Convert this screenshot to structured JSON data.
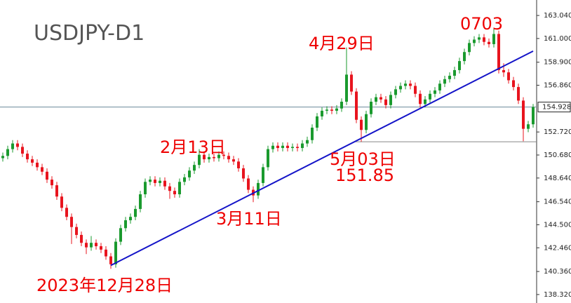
{
  "chart_data": {
    "type": "candlestick",
    "title": "USDJPY-D1",
    "ylim": [
      137.57,
      164.41
    ],
    "yticks": [
      {
        "value": 163.04,
        "label": "163.040"
      },
      {
        "value": 161,
        "label": "161.000"
      },
      {
        "value": 158.9,
        "label": "158.900"
      },
      {
        "value": 156.86,
        "label": "156.860"
      },
      {
        "value": 152.72,
        "label": "152.720"
      },
      {
        "value": 150.68,
        "label": "150.680"
      },
      {
        "value": 148.64,
        "label": "148.640"
      },
      {
        "value": 146.54,
        "label": "146.540"
      },
      {
        "value": 144.5,
        "label": "144.500"
      },
      {
        "value": 142.46,
        "label": "142.460"
      },
      {
        "value": 140.36,
        "label": "140.360"
      },
      {
        "value": 138.32,
        "label": "138.320"
      }
    ],
    "up_color": "#1a9a2e",
    "down_color": "#e8141e",
    "last_price": 154.928,
    "support": 151.85,
    "trendline": [
      [
        22,
        140.9
      ],
      [
        108,
        159.88
      ]
    ],
    "annotations": [
      "4月29日",
      "0703",
      "2月13日",
      "5月03日",
      "3月11日",
      "2023年12月28日"
    ],
    "candles": [
      [
        150.4,
        150.9,
        150.1,
        150.6
      ],
      [
        150.6,
        151.5,
        150.3,
        151.2
      ],
      [
        151.2,
        152.0,
        150.9,
        151.7
      ],
      [
        151.7,
        152.0,
        151.1,
        151.4
      ],
      [
        151.4,
        151.7,
        150.5,
        150.8
      ],
      [
        150.8,
        151.1,
        150.0,
        150.3
      ],
      [
        150.3,
        150.6,
        149.7,
        150.0
      ],
      [
        150.0,
        150.3,
        149.3,
        149.6
      ],
      [
        149.6,
        149.9,
        148.9,
        149.2
      ],
      [
        149.2,
        149.5,
        148.2,
        148.5
      ],
      [
        148.5,
        148.8,
        147.7,
        148.0
      ],
      [
        148.0,
        148.3,
        146.7,
        147.0
      ],
      [
        147.0,
        147.3,
        145.7,
        146.0
      ],
      [
        146.0,
        146.3,
        144.9,
        145.2
      ],
      [
        145.2,
        145.5,
        142.8,
        144.3
      ],
      [
        144.3,
        144.6,
        143.3,
        143.6
      ],
      [
        143.6,
        143.9,
        142.6,
        142.9
      ],
      [
        142.9,
        143.2,
        141.9,
        142.5
      ],
      [
        142.5,
        143.5,
        142.2,
        142.9
      ],
      [
        142.9,
        143.2,
        142.3,
        142.6
      ],
      [
        142.6,
        142.9,
        142.0,
        142.3
      ],
      [
        142.3,
        142.6,
        141.4,
        141.7
      ],
      [
        141.7,
        142.0,
        140.6,
        141.0
      ],
      [
        141.0,
        143.3,
        140.7,
        143.0
      ],
      [
        143.0,
        144.5,
        142.7,
        144.2
      ],
      [
        144.2,
        145.2,
        143.9,
        144.9
      ],
      [
        144.9,
        145.5,
        144.6,
        145.2
      ],
      [
        145.2,
        146.2,
        144.9,
        145.9
      ],
      [
        145.9,
        147.5,
        145.6,
        147.2
      ],
      [
        147.2,
        148.6,
        146.9,
        148.3
      ],
      [
        148.3,
        148.8,
        148.0,
        148.5
      ],
      [
        148.5,
        148.8,
        147.9,
        148.2
      ],
      [
        148.2,
        148.7,
        147.9,
        148.4
      ],
      [
        148.4,
        148.7,
        147.6,
        147.9
      ],
      [
        147.9,
        148.2,
        146.8,
        147.5
      ],
      [
        147.5,
        147.8,
        146.9,
        147.2
      ],
      [
        147.2,
        148.6,
        146.9,
        148.3
      ],
      [
        148.3,
        149.0,
        148.0,
        148.7
      ],
      [
        148.7,
        149.6,
        148.4,
        149.3
      ],
      [
        149.3,
        150.1,
        149.0,
        149.8
      ],
      [
        149.8,
        151.2,
        149.5,
        150.7
      ],
      [
        150.7,
        151.0,
        150.0,
        150.3
      ],
      [
        150.3,
        150.8,
        150.0,
        150.5
      ],
      [
        150.5,
        150.8,
        150.1,
        150.4
      ],
      [
        150.4,
        151.0,
        150.1,
        150.7
      ],
      [
        150.7,
        151.0,
        150.3,
        150.6
      ],
      [
        150.6,
        150.9,
        150.0,
        150.3
      ],
      [
        150.3,
        150.6,
        149.8,
        150.1
      ],
      [
        150.1,
        150.4,
        149.2,
        149.5
      ],
      [
        149.5,
        149.8,
        148.3,
        148.6
      ],
      [
        148.6,
        148.9,
        147.3,
        147.6
      ],
      [
        147.6,
        147.9,
        146.5,
        147.1
      ],
      [
        147.1,
        148.5,
        146.8,
        148.2
      ],
      [
        148.2,
        149.9,
        147.9,
        149.6
      ],
      [
        149.6,
        151.5,
        149.3,
        151.2
      ],
      [
        151.2,
        151.8,
        150.9,
        151.5
      ],
      [
        151.5,
        151.8,
        151.0,
        151.3
      ],
      [
        151.3,
        151.8,
        151.0,
        151.5
      ],
      [
        151.5,
        151.8,
        151.0,
        151.3
      ],
      [
        151.3,
        151.7,
        151.0,
        151.4
      ],
      [
        151.4,
        151.7,
        151.0,
        151.3
      ],
      [
        151.3,
        152.0,
        151.0,
        151.7
      ],
      [
        151.7,
        152.3,
        151.4,
        152.0
      ],
      [
        152.0,
        153.4,
        151.7,
        153.1
      ],
      [
        153.1,
        154.4,
        152.8,
        154.1
      ],
      [
        154.1,
        154.9,
        153.8,
        154.6
      ],
      [
        154.6,
        155.0,
        154.3,
        154.7
      ],
      [
        154.7,
        155.0,
        154.3,
        154.6
      ],
      [
        154.6,
        155.1,
        154.3,
        154.8
      ],
      [
        154.8,
        155.7,
        154.5,
        155.4
      ],
      [
        155.4,
        160.2,
        155.1,
        157.8
      ],
      [
        157.8,
        158.1,
        156.0,
        156.3
      ],
      [
        156.3,
        156.6,
        153.5,
        153.8
      ],
      [
        153.8,
        154.1,
        151.85,
        152.9
      ],
      [
        152.9,
        154.6,
        152.6,
        154.3
      ],
      [
        154.3,
        155.7,
        154.0,
        155.4
      ],
      [
        155.4,
        156.1,
        155.1,
        155.8
      ],
      [
        155.8,
        156.1,
        155.3,
        155.6
      ],
      [
        155.6,
        155.9,
        154.8,
        155.1
      ],
      [
        155.1,
        156.3,
        154.8,
        156.0
      ],
      [
        156.0,
        156.8,
        155.7,
        156.5
      ],
      [
        156.5,
        157.1,
        156.2,
        156.8
      ],
      [
        156.8,
        157.3,
        156.5,
        157.0
      ],
      [
        157.0,
        157.3,
        156.5,
        156.8
      ],
      [
        156.8,
        157.1,
        155.8,
        156.1
      ],
      [
        156.1,
        156.4,
        154.9,
        155.2
      ],
      [
        155.2,
        155.9,
        154.9,
        155.6
      ],
      [
        155.6,
        156.4,
        155.3,
        156.1
      ],
      [
        156.1,
        156.7,
        155.8,
        156.4
      ],
      [
        156.4,
        157.3,
        156.1,
        157.0
      ],
      [
        157.0,
        157.7,
        156.7,
        157.4
      ],
      [
        157.4,
        158.0,
        157.1,
        157.7
      ],
      [
        157.7,
        158.5,
        157.4,
        158.2
      ],
      [
        158.2,
        159.3,
        157.9,
        159.0
      ],
      [
        159.0,
        160.1,
        158.7,
        159.8
      ],
      [
        159.8,
        160.9,
        159.5,
        160.6
      ],
      [
        160.6,
        161.2,
        160.3,
        160.9
      ],
      [
        160.9,
        161.4,
        160.6,
        161.1
      ],
      [
        161.1,
        161.4,
        160.4,
        160.7
      ],
      [
        160.7,
        161.0,
        160.2,
        160.5
      ],
      [
        160.5,
        161.9,
        160.2,
        161.4
      ],
      [
        161.4,
        161.7,
        157.9,
        158.2
      ],
      [
        158.2,
        158.8,
        157.6,
        158.0
      ],
      [
        158.0,
        158.3,
        157.0,
        157.3
      ],
      [
        157.3,
        157.6,
        156.4,
        156.7
      ],
      [
        156.7,
        157.0,
        155.2,
        155.5
      ],
      [
        155.5,
        155.8,
        151.9,
        153.0
      ],
      [
        153.0,
        153.7,
        152.7,
        153.4
      ],
      [
        153.4,
        155.2,
        153.1,
        154.928
      ]
    ]
  }
}
